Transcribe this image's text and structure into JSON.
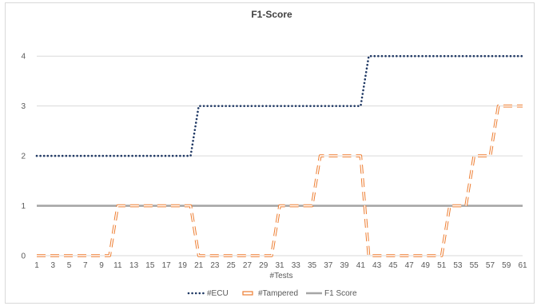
{
  "chart_data": {
    "type": "line",
    "title": "F1-Score",
    "xlabel": "#Tests",
    "ylabel": "",
    "ylim": [
      0,
      4.5
    ],
    "yticks": [
      0,
      1,
      2,
      3,
      4
    ],
    "x": [
      1,
      2,
      3,
      4,
      5,
      6,
      7,
      8,
      9,
      10,
      11,
      12,
      13,
      14,
      15,
      16,
      17,
      18,
      19,
      20,
      21,
      22,
      23,
      24,
      25,
      26,
      27,
      28,
      29,
      30,
      31,
      32,
      33,
      34,
      35,
      36,
      37,
      38,
      39,
      40,
      41,
      42,
      43,
      44,
      45,
      46,
      47,
      48,
      49,
      50,
      51,
      52,
      53,
      54,
      55,
      56,
      57,
      58,
      59,
      60,
      61
    ],
    "xtick_labels": [
      "1",
      "3",
      "5",
      "7",
      "9",
      "11",
      "13",
      "15",
      "17",
      "19",
      "21",
      "23",
      "25",
      "27",
      "29",
      "31",
      "33",
      "35",
      "37",
      "39",
      "41",
      "43",
      "45",
      "47",
      "49",
      "51",
      "53",
      "55",
      "57",
      "59",
      "61"
    ],
    "grid": "horizontal",
    "legend": "bottom",
    "series": [
      {
        "name": "#ECU",
        "color": "#1f3864",
        "style": "dotted",
        "values": [
          2,
          2,
          2,
          2,
          2,
          2,
          2,
          2,
          2,
          2,
          2,
          2,
          2,
          2,
          2,
          2,
          2,
          2,
          2,
          2,
          3,
          3,
          3,
          3,
          3,
          3,
          3,
          3,
          3,
          3,
          3,
          3,
          3,
          3,
          3,
          3,
          3,
          3,
          3,
          3,
          3,
          4,
          4,
          4,
          4,
          4,
          4,
          4,
          4,
          4,
          4,
          4,
          4,
          4,
          4,
          4,
          4,
          4,
          4,
          4,
          4
        ]
      },
      {
        "name": "#Tampered",
        "color": "#ed7d31",
        "style": "dashed-outline",
        "values": [
          0,
          0,
          0,
          0,
          0,
          0,
          0,
          0,
          0,
          0,
          1,
          1,
          1,
          1,
          1,
          1,
          1,
          1,
          1,
          1,
          0,
          0,
          0,
          0,
          0,
          0,
          0,
          0,
          0,
          0,
          1,
          1,
          1,
          1,
          1,
          2,
          2,
          2,
          2,
          2,
          2,
          0,
          0,
          0,
          0,
          0,
          0,
          0,
          0,
          0,
          0,
          1,
          1,
          1,
          2,
          2,
          2,
          3,
          3,
          3,
          3
        ]
      },
      {
        "name": "F1 Score",
        "color": "#a6a6a6",
        "style": "solid",
        "values": [
          1,
          1,
          1,
          1,
          1,
          1,
          1,
          1,
          1,
          1,
          1,
          1,
          1,
          1,
          1,
          1,
          1,
          1,
          1,
          1,
          1,
          1,
          1,
          1,
          1,
          1,
          1,
          1,
          1,
          1,
          1,
          1,
          1,
          1,
          1,
          1,
          1,
          1,
          1,
          1,
          1,
          1,
          1,
          1,
          1,
          1,
          1,
          1,
          1,
          1,
          1,
          1,
          1,
          1,
          1,
          1,
          1,
          1,
          1,
          1,
          1
        ]
      }
    ]
  }
}
